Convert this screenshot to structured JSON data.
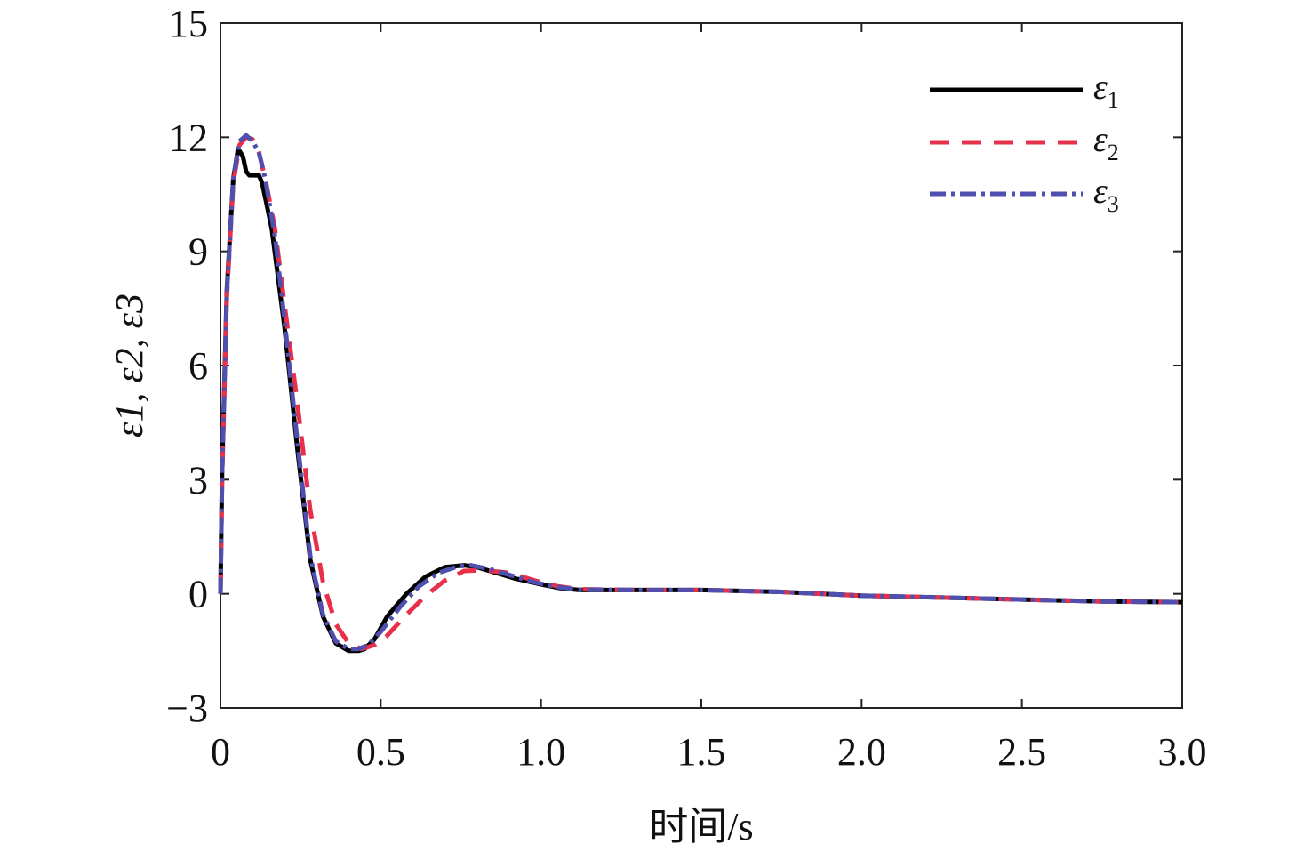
{
  "chart_data": {
    "type": "line",
    "title": "",
    "xlabel": "时间/s",
    "ylabel": "ε1, ε2, ε3",
    "xlim": [
      0,
      3.0
    ],
    "ylim": [
      -3,
      15
    ],
    "xticks": [
      0,
      0.5,
      1.0,
      1.5,
      2.0,
      2.5,
      3.0
    ],
    "xtick_labels": [
      "0",
      "0.5",
      "1.0",
      "1.5",
      "2.0",
      "2.5",
      "3.0"
    ],
    "yticks": [
      -3,
      0,
      3,
      6,
      9,
      12,
      15
    ],
    "ytick_labels": [
      "−3",
      "0",
      "3",
      "6",
      "9",
      "12",
      "15"
    ],
    "grid": false,
    "legend_position": "top-right",
    "series": [
      {
        "name": "ε1",
        "name_base": "ε",
        "name_sub": "1",
        "color": "#000000",
        "dash": "solid",
        "x": [
          0,
          0.005,
          0.02,
          0.04,
          0.055,
          0.07,
          0.08,
          0.09,
          0.1,
          0.12,
          0.13,
          0.16,
          0.2,
          0.24,
          0.28,
          0.32,
          0.36,
          0.4,
          0.43,
          0.45,
          0.48,
          0.52,
          0.58,
          0.64,
          0.7,
          0.76,
          0.8,
          0.86,
          0.92,
          1.0,
          1.06,
          1.12,
          1.3,
          1.5,
          1.75,
          2.0,
          2.25,
          2.5,
          2.75,
          3.0
        ],
        "y": [
          0,
          3.2,
          8.0,
          10.9,
          11.7,
          11.5,
          11.1,
          11.0,
          11.0,
          11.0,
          10.8,
          9.6,
          7.0,
          3.8,
          0.9,
          -0.6,
          -1.3,
          -1.5,
          -1.5,
          -1.45,
          -1.2,
          -0.6,
          0.0,
          0.45,
          0.7,
          0.75,
          0.7,
          0.55,
          0.4,
          0.25,
          0.15,
          0.1,
          0.1,
          0.1,
          0.05,
          -0.05,
          -0.1,
          -0.15,
          -0.2,
          -0.22
        ]
      },
      {
        "name": "ε2",
        "name_base": "ε",
        "name_sub": "2",
        "color": "#e8304a",
        "dash": "dashed",
        "x": [
          0,
          0.005,
          0.02,
          0.04,
          0.06,
          0.08,
          0.1,
          0.12,
          0.14,
          0.17,
          0.2,
          0.24,
          0.28,
          0.32,
          0.36,
          0.4,
          0.44,
          0.48,
          0.52,
          0.58,
          0.64,
          0.7,
          0.76,
          0.82,
          0.9,
          0.98,
          1.05,
          1.12,
          1.3,
          1.5,
          1.75,
          2.0,
          2.25,
          2.5,
          2.75,
          3.0
        ],
        "y": [
          0,
          3.0,
          7.8,
          10.8,
          11.8,
          12.0,
          11.95,
          11.6,
          10.9,
          9.6,
          7.6,
          5.0,
          2.2,
          0.3,
          -0.8,
          -1.3,
          -1.45,
          -1.35,
          -1.1,
          -0.55,
          -0.05,
          0.35,
          0.6,
          0.62,
          0.55,
          0.35,
          0.2,
          0.12,
          0.1,
          0.1,
          0.05,
          -0.05,
          -0.1,
          -0.15,
          -0.2,
          -0.22
        ]
      },
      {
        "name": "ε3",
        "name_base": "ε",
        "name_sub": "3",
        "color": "#4f4faf",
        "dash": "dashdot",
        "x": [
          0,
          0.005,
          0.02,
          0.04,
          0.06,
          0.08,
          0.1,
          0.12,
          0.14,
          0.17,
          0.2,
          0.24,
          0.28,
          0.32,
          0.36,
          0.4,
          0.43,
          0.46,
          0.5,
          0.56,
          0.62,
          0.68,
          0.74,
          0.78,
          0.84,
          0.9,
          0.98,
          1.05,
          1.12,
          1.3,
          1.5,
          1.75,
          2.0,
          2.25,
          2.5,
          2.75,
          3.0
        ],
        "y": [
          0,
          3.1,
          7.9,
          10.9,
          11.9,
          12.05,
          11.9,
          11.6,
          10.9,
          9.4,
          7.2,
          4.0,
          1.0,
          -0.55,
          -1.25,
          -1.45,
          -1.45,
          -1.35,
          -1.0,
          -0.35,
          0.2,
          0.55,
          0.72,
          0.75,
          0.65,
          0.5,
          0.3,
          0.18,
          0.11,
          0.1,
          0.1,
          0.05,
          -0.05,
          -0.1,
          -0.15,
          -0.2,
          -0.22
        ]
      }
    ]
  }
}
